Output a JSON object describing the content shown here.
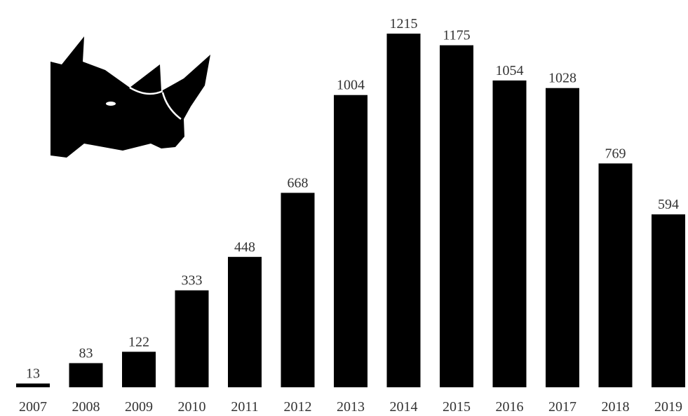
{
  "chart_data": {
    "type": "bar",
    "categories": [
      "2007",
      "2008",
      "2009",
      "2010",
      "2011",
      "2012",
      "2013",
      "2014",
      "2015",
      "2016",
      "2017",
      "2018",
      "2019"
    ],
    "values": [
      13,
      83,
      122,
      333,
      448,
      668,
      1004,
      1215,
      1175,
      1054,
      1028,
      769,
      594
    ],
    "color": "#000000"
  }
}
